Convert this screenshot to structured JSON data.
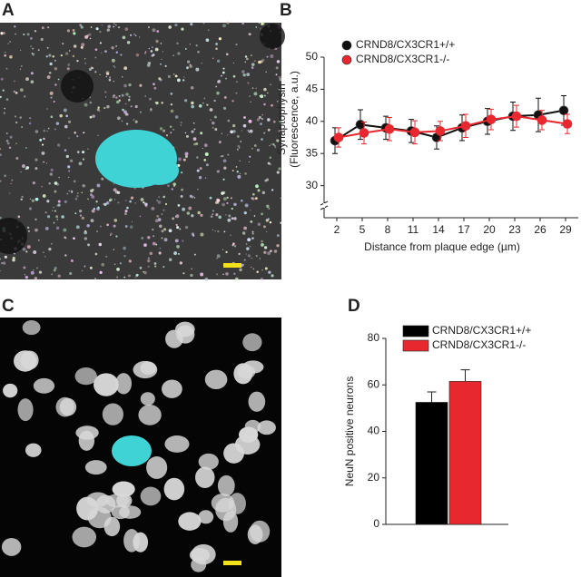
{
  "panel_labels": [
    "A",
    "B",
    "C",
    "D"
  ],
  "chart_data": [
    {
      "type": "line",
      "ylabel": [
        "Synaptophysin",
        "(Fluorescence, a.u.)"
      ],
      "xlabel": "Distance from plaque edge (µm)",
      "x": [
        2,
        5,
        8,
        11,
        14,
        17,
        20,
        23,
        26,
        29
      ],
      "xlim": [
        0.5,
        30.5
      ],
      "xticks": [
        2,
        5,
        8,
        11,
        14,
        17,
        20,
        23,
        26,
        29
      ],
      "ylim": [
        25,
        50
      ],
      "yticks": [
        30,
        35,
        40,
        45,
        50
      ],
      "series": [
        {
          "name": "CRND8/CX3CR1+/+",
          "color": "#111111",
          "values": [
            37,
            39.5,
            39,
            38.5,
            37.5,
            39,
            40,
            40.8,
            41,
            41.7
          ],
          "errors": [
            2,
            2.3,
            1.8,
            1.8,
            1.8,
            2,
            2,
            2.2,
            2.6,
            2.3
          ]
        },
        {
          "name": "CRND8/CX3CR1-/-",
          "color": "#e8282f",
          "values": [
            37.5,
            38.2,
            38.8,
            38.3,
            38.5,
            39.3,
            40.3,
            40.8,
            40.2,
            39.6
          ],
          "errors": [
            1.5,
            1.7,
            1.8,
            1.8,
            1.5,
            1.8,
            1.6,
            1.7,
            1.5,
            1.5
          ]
        }
      ]
    },
    {
      "type": "bar",
      "ylabel": "NeuN positive neurons",
      "categories": [
        null
      ],
      "ylim": [
        0,
        80
      ],
      "yticks": [
        0,
        20,
        40,
        60,
        80
      ],
      "series": [
        {
          "name": "CRND8/CX3CR1+/+",
          "color": "#000000",
          "values": [
            52.5
          ],
          "errors": [
            4.5
          ]
        },
        {
          "name": "CRND8/CX3CR1-/-",
          "color": "#e8282f",
          "values": [
            61.5
          ],
          "errors": [
            5
          ]
        }
      ]
    }
  ]
}
